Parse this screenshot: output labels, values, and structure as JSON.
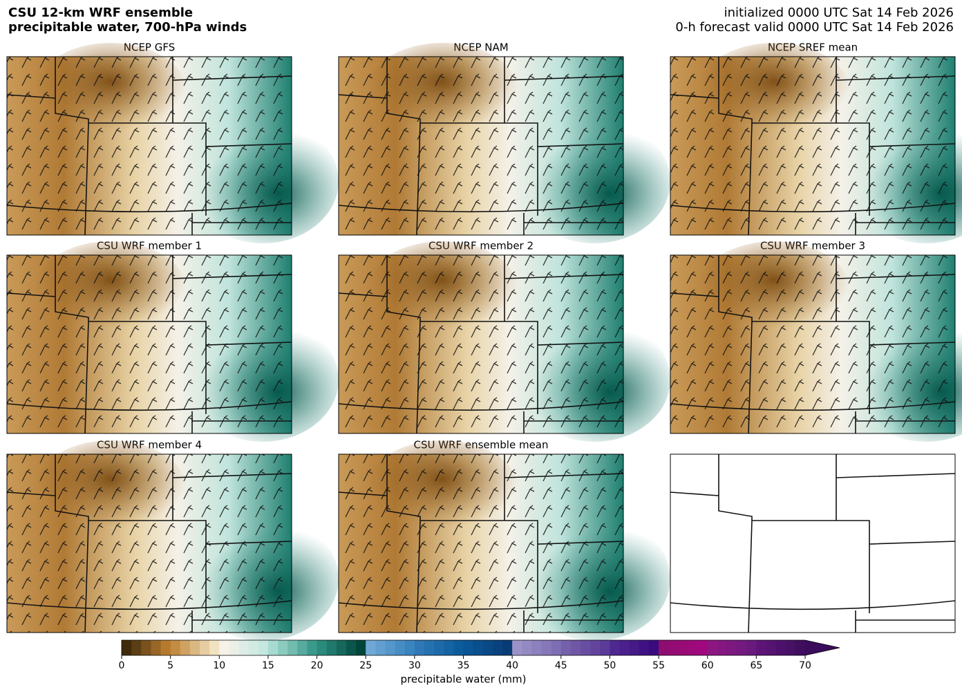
{
  "title": "CSU 12-km WRF ensemble",
  "subtitle": "precipitable water, 700-hPa winds",
  "init": "initialized 0000 UTC Sat 14 Feb 2026",
  "valid": "0-h forecast valid 0000 UTC Sat 14 Feb 2026",
  "panels": [
    "NCEP GFS",
    "NCEP NAM",
    "NCEP SREF mean",
    "CSU WRF member 1",
    "CSU WRF member 2",
    "CSU WRF member 3",
    "CSU WRF member 4",
    "CSU WRF ensemble mean"
  ],
  "colorbar": {
    "label": "precipitable water (mm)",
    "lim": [
      0,
      70
    ],
    "ticks": [
      0,
      5,
      10,
      15,
      20,
      25,
      30,
      35,
      40,
      45,
      50,
      55,
      60,
      65,
      70
    ],
    "colors": [
      [
        "#3f2a0c",
        "#b67a2d"
      ],
      [
        "#c38c42",
        "#f1e3c0"
      ],
      [
        "#f6f2e8",
        "#c4e8e1"
      ],
      [
        "#a7dbd1",
        "#3c9a8c"
      ],
      [
        "#2a8a7c",
        "#004539"
      ],
      [
        "#6fa8d6",
        "#3a84bf"
      ],
      [
        "#2f78b5",
        "#0c5c9c"
      ],
      [
        "#0a5595",
        "#083c76"
      ],
      [
        "#9b93c8",
        "#7e6db4"
      ],
      [
        "#7560ab",
        "#5b3b98"
      ],
      [
        "#4f2790",
        "#3a0b7e"
      ],
      [
        "#8f0d6f",
        "#a1087e"
      ],
      [
        "#8e1682",
        "#6a1a7e"
      ],
      [
        "#5d1477",
        "#3f0e5f"
      ]
    ],
    "extend_color": "#3b0c5c"
  }
}
